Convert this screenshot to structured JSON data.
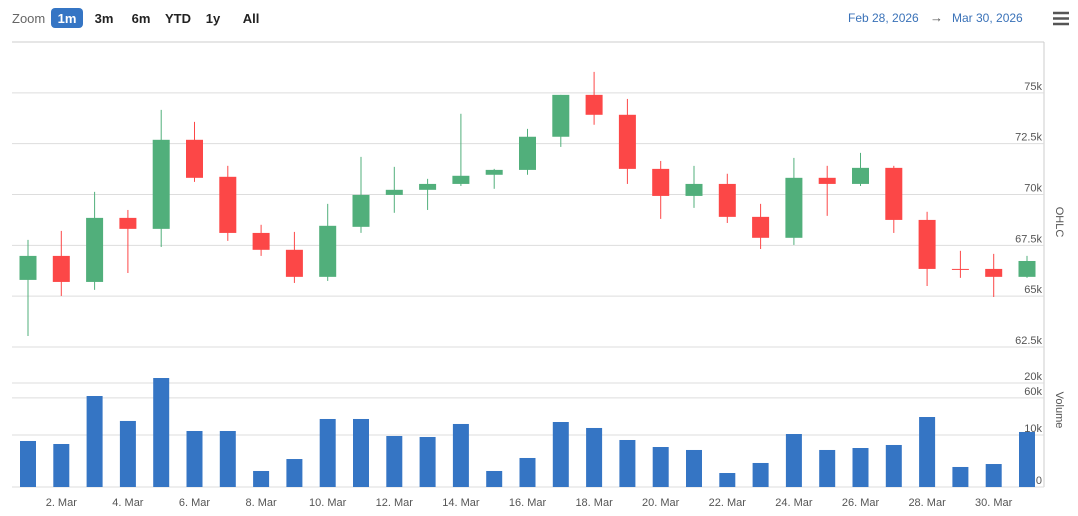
{
  "toolbar": {
    "zoom_label": "Zoom",
    "buttons": [
      "1m",
      "3m",
      "6m",
      "YTD",
      "1y",
      "All"
    ],
    "selected": 0,
    "range_from": "Feb 28, 2026",
    "range_separator": "→",
    "range_to": "Mar 30, 2026"
  },
  "chart_data": [
    {
      "type": "candlestick",
      "y_label": "OHLC",
      "up_color": "#51af7b",
      "down_color": "#fc4747",
      "open": [
        65800,
        66980,
        65700,
        68850,
        68310,
        72690,
        70870,
        68110,
        67280,
        65950,
        68410,
        69980,
        70230,
        70520,
        70970,
        71210,
        72840,
        74900,
        73920,
        71260,
        69930,
        70520,
        68900,
        67870,
        70820,
        70520,
        71310,
        68750,
        66340,
        66340,
        65950
      ],
      "high": [
        67770,
        68210,
        70130,
        69240,
        74160,
        73570,
        71410,
        68510,
        68160,
        69540,
        71850,
        71360,
        70770,
        73970,
        71260,
        73230,
        74900,
        76030,
        74700,
        71650,
        71410,
        71020,
        69540,
        71800,
        71410,
        72050,
        71410,
        69150,
        67230,
        67080,
        66980
      ],
      "low": [
        63040,
        65010,
        65310,
        66140,
        67420,
        70620,
        67720,
        66980,
        65650,
        65750,
        68110,
        69100,
        69240,
        70420,
        70280,
        70970,
        72340,
        73430,
        70520,
        68800,
        69340,
        68600,
        67320,
        67520,
        68950,
        70420,
        68110,
        65500,
        65900,
        64960,
        65900
      ],
      "close": [
        66980,
        65700,
        68850,
        68310,
        72690,
        70820,
        68110,
        67280,
        65950,
        68460,
        69980,
        70230,
        70520,
        70920,
        71210,
        72840,
        74900,
        73920,
        71260,
        69930,
        70520,
        68900,
        67870,
        70820,
        70520,
        71310,
        68750,
        66340,
        66300,
        65950,
        66730
      ],
      "ylim": [
        62500,
        77500
      ],
      "yticks": [
        {
          "value": 62500,
          "label": "62.5k"
        },
        {
          "value": 65000,
          "label": "65k"
        },
        {
          "value": 67500,
          "label": "67.5k"
        },
        {
          "value": 70000,
          "label": "70k"
        },
        {
          "value": 72500,
          "label": "72.5k"
        },
        {
          "value": 75000,
          "label": "75k"
        }
      ],
      "grid": true
    },
    {
      "type": "bar",
      "y_label": "Volume",
      "color": "#3575c4",
      "categories": [
        null,
        "2. Mar",
        null,
        "4. Mar",
        null,
        "6. Mar",
        null,
        "8. Mar",
        null,
        "10. Mar",
        null,
        "12. Mar",
        null,
        "14. Mar",
        null,
        "16. Mar",
        null,
        "18. Mar",
        null,
        "20. Mar",
        null,
        "22. Mar",
        null,
        "24. Mar",
        null,
        "26. Mar",
        null,
        "28. Mar",
        null,
        "30. Mar",
        null
      ],
      "values": [
        8850,
        8270,
        17500,
        12700,
        20960,
        10770,
        10770,
        3080,
        5380,
        13080,
        13080,
        9810,
        9620,
        12120,
        3080,
        5580,
        12500,
        11350,
        9040,
        7690,
        7120,
        2690,
        4620,
        10190,
        7120,
        7500,
        8080,
        13460,
        3850,
        4420,
        10580
      ],
      "ylim": [
        0,
        20000
      ],
      "yticks": [
        {
          "value": 0,
          "label": "0"
        },
        {
          "value": 10000,
          "label": "10k"
        },
        {
          "value": 20000,
          "label": "20k"
        }
      ],
      "y2lim": [
        0,
        70000
      ],
      "y2ticks": [
        {
          "value": 60000,
          "label": "60k"
        }
      ],
      "grid": true
    }
  ]
}
